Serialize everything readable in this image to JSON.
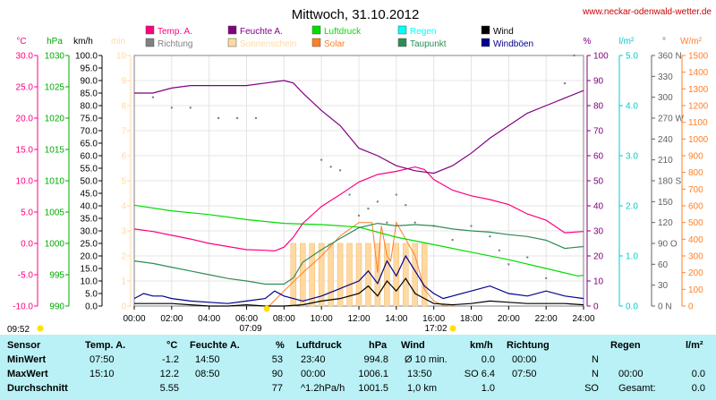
{
  "title": "Mittwoch, 31.10.2012",
  "site": "www.neckar-odenwald-wetter.de",
  "legend": [
    {
      "label": "Temp. A.",
      "color": "#ff007f"
    },
    {
      "label": "Feuchte A.",
      "color": "#800080"
    },
    {
      "label": "Luftdruck",
      "color": "#00dd00"
    },
    {
      "label": "Regen",
      "color": "#00ffff"
    },
    {
      "label": "Wind",
      "color": "#000000"
    },
    {
      "label": "Richtung",
      "color": "#808080"
    },
    {
      "label": "Sonnenschein",
      "color": "#ffd9a0"
    },
    {
      "label": "Solar",
      "color": "#ff7f27"
    },
    {
      "label": "Taupunkt",
      "color": "#2e8b57"
    },
    {
      "label": "Windböen",
      "color": "#00008b"
    }
  ],
  "axes": {
    "temp": {
      "unit": "°C",
      "ticks": [
        "30.0",
        "25.0",
        "20.0",
        "15.0",
        "10.0",
        "5.0",
        "0.0",
        "-5.0",
        "-10.0"
      ],
      "color": "#ff007f"
    },
    "pressure": {
      "unit": "hPa",
      "ticks": [
        "1030",
        "1025",
        "1020",
        "1015",
        "1010",
        "1005",
        "1000",
        "995",
        "990"
      ],
      "color": "#00aa00"
    },
    "wind": {
      "unit": "km/h",
      "ticks": [
        "100.0",
        "95.0",
        "90.0",
        "85.0",
        "80.0",
        "75.0",
        "70.0",
        "65.0",
        "60.0",
        "55.0",
        "50.0",
        "45.0",
        "40.0",
        "35.0",
        "30.0",
        "25.0",
        "20.0",
        "15.0",
        "10.0",
        "5.0",
        "0.0"
      ],
      "color": "#000000"
    },
    "sunshine": {
      "unit": "min",
      "ticks": [
        "10",
        "9",
        "8",
        "7",
        "6",
        "5",
        "4",
        "3",
        "2",
        "1",
        "0"
      ],
      "color": "#ffd9a0"
    },
    "humidity": {
      "unit": "%",
      "ticks": [
        "100",
        "90",
        "80",
        "70",
        "60",
        "50",
        "40",
        "30",
        "20",
        "10",
        "0"
      ],
      "color": "#800080"
    },
    "rain": {
      "unit": "l/m²",
      "ticks": [
        "5.0",
        "4.0",
        "3.0",
        "2.0",
        "1.0",
        "0.0"
      ],
      "color": "#00cccc"
    },
    "direction": {
      "unit": "°",
      "ticks": [
        "360 N",
        "330",
        "300",
        "270 W",
        "240",
        "210",
        "180 S",
        "150",
        "120",
        "90 O",
        "60",
        "30",
        "0 N"
      ],
      "color": "#606060"
    },
    "solar": {
      "unit": "W/m²",
      "ticks": [
        "1500",
        "1400",
        "1300",
        "1200",
        "1100",
        "1000",
        "900",
        "800",
        "700",
        "600",
        "500",
        "400",
        "300",
        "200",
        "100",
        "0"
      ],
      "color": "#ff7f27"
    },
    "time": [
      "00:00",
      "02:00",
      "04:00",
      "06:00",
      "08:00",
      "10:00",
      "12:00",
      "14:00",
      "16:00",
      "18:00",
      "20:00",
      "22:00",
      "24:00"
    ]
  },
  "sun_events": {
    "left": "09:52",
    "sunrise": "07:09",
    "sunset": "17:02"
  },
  "chart_data": {
    "type": "line",
    "title": "Mittwoch, 31.10.2012",
    "x_unit": "hours",
    "xlim": [
      0,
      24
    ],
    "series": [
      {
        "name": "Temp. A.",
        "unit": "°C",
        "color": "#ff007f",
        "x": [
          0,
          1,
          2,
          3,
          4,
          5,
          6,
          7,
          7.5,
          8,
          8.5,
          9,
          10,
          11,
          12,
          13,
          14,
          15,
          15.5,
          16,
          17,
          18,
          19,
          20,
          21,
          22,
          23,
          24
        ],
        "y": [
          2.3,
          1.9,
          1.3,
          0.7,
          0.0,
          -0.5,
          -1.0,
          -1.1,
          -1.2,
          -0.6,
          1.0,
          3.2,
          5.9,
          7.8,
          9.8,
          11.0,
          11.5,
          12.2,
          11.8,
          10.2,
          8.5,
          7.6,
          7.0,
          6.2,
          4.7,
          3.7,
          1.7,
          1.9
        ]
      },
      {
        "name": "Feuchte A.",
        "unit": "%",
        "color": "#800080",
        "x": [
          0,
          1,
          2,
          3,
          4,
          5,
          6,
          7,
          8,
          8.5,
          9,
          10,
          11,
          12,
          13,
          14,
          15,
          16,
          17,
          18,
          19,
          20,
          21,
          22,
          23,
          24
        ],
        "y": [
          85,
          85,
          87,
          88,
          88,
          88,
          88,
          89,
          90,
          89,
          85,
          78,
          72,
          63,
          60,
          56,
          54,
          53,
          56,
          61,
          67,
          72,
          77,
          80,
          83,
          86
        ]
      },
      {
        "name": "Luftdruck",
        "unit": "hPa",
        "color": "#00dd00",
        "x": [
          0,
          2,
          4,
          6,
          8,
          10,
          12,
          13,
          14,
          16,
          18,
          20,
          22,
          23.7,
          24
        ],
        "y": [
          1006.1,
          1005.2,
          1004.6,
          1003.8,
          1003.2,
          1003.0,
          1002.6,
          1001.8,
          1001.0,
          999.8,
          998.6,
          997.4,
          996.0,
          994.8,
          994.9
        ]
      },
      {
        "name": "Taupunkt",
        "unit": "°C",
        "color": "#2e8b57",
        "x": [
          0,
          1,
          2,
          3,
          4,
          5,
          6,
          7,
          8,
          8.5,
          9,
          10,
          11,
          12,
          13,
          14,
          15,
          16,
          17,
          18,
          19,
          20,
          21,
          22,
          23,
          24
        ],
        "y": [
          -2.8,
          -3.2,
          -3.8,
          -4.4,
          -5.0,
          -5.6,
          -6.0,
          -6.5,
          -6.5,
          -5.5,
          -3.0,
          -1.0,
          0.8,
          2.5,
          3.2,
          2.8,
          3.0,
          2.8,
          2.3,
          2.0,
          1.8,
          1.4,
          1.1,
          0.5,
          -0.8,
          -0.5
        ]
      },
      {
        "name": "Solar",
        "unit": "W/m²",
        "color": "#ff7f27",
        "x": [
          7.2,
          8,
          9,
          10,
          11,
          12,
          12.7,
          13,
          13.2,
          13.5,
          13.7,
          14,
          14.5,
          15,
          15.5,
          16,
          16.5,
          17
        ],
        "y": [
          0,
          90,
          200,
          300,
          420,
          500,
          500,
          200,
          480,
          300,
          270,
          500,
          400,
          300,
          100,
          30,
          5,
          0
        ]
      },
      {
        "name": "Sonnenschein",
        "unit": "min",
        "color": "#ffd9a0",
        "x": [
          8.5,
          9,
          9.5,
          10,
          10.5,
          11,
          11.5,
          12,
          12.5,
          13,
          13.5,
          14,
          14.5,
          15,
          15.5
        ],
        "y": [
          2.5,
          2.5,
          2.5,
          2.5,
          2.5,
          2.5,
          2.5,
          2.5,
          2.5,
          2.5,
          2.5,
          2.5,
          2.5,
          2.5,
          2.5
        ]
      },
      {
        "name": "Wind",
        "unit": "km/h",
        "color": "#000000",
        "x": [
          0,
          1,
          2,
          3,
          4,
          5,
          6,
          7,
          8,
          9,
          10,
          11,
          12,
          12.5,
          13,
          13.5,
          14,
          14.5,
          15,
          15.5,
          16,
          17,
          18,
          19,
          20,
          21,
          22,
          23,
          24
        ],
        "y": [
          1,
          1,
          1,
          0.5,
          0,
          0,
          0.5,
          0,
          0,
          0.5,
          2,
          3,
          5,
          8,
          4,
          10,
          6,
          11,
          5,
          3,
          1,
          0.5,
          1,
          2,
          1.5,
          1,
          1,
          1,
          0.5
        ]
      },
      {
        "name": "Windböen",
        "unit": "km/h",
        "color": "#00008b",
        "x": [
          0,
          0.5,
          1,
          1.5,
          2,
          3,
          4,
          5,
          6,
          7,
          7.5,
          8,
          9,
          10,
          11,
          12,
          12.5,
          13,
          13.5,
          14,
          14.5,
          15,
          15.5,
          16,
          16.5,
          17,
          18,
          19,
          20,
          21,
          22,
          23,
          24
        ],
        "y": [
          3,
          5,
          4,
          4,
          3,
          2,
          1.5,
          1,
          2,
          3,
          6,
          4,
          2,
          4,
          7,
          10,
          14,
          9,
          18,
          12,
          20,
          14,
          8,
          5,
          3,
          4,
          6,
          8,
          5,
          4,
          6,
          4,
          3
        ]
      },
      {
        "name": "Richtung",
        "unit": "°",
        "color": "#808080",
        "x": [
          1,
          2,
          3,
          4.5,
          5.5,
          6.5,
          10,
          10.5,
          11,
          11.5,
          12,
          12.5,
          13,
          13.5,
          14,
          14.5,
          15,
          16,
          17,
          18,
          19,
          19.5,
          20,
          21,
          22,
          23,
          23.5
        ],
        "y": [
          300,
          285,
          285,
          270,
          270,
          270,
          210,
          200,
          195,
          160,
          130,
          140,
          150,
          120,
          160,
          145,
          120,
          115,
          95,
          115,
          100,
          80,
          60,
          70,
          40,
          320,
          360
        ]
      }
    ]
  },
  "table": {
    "header": {
      "sensor": "Sensor",
      "temp": "Temp. A.",
      "temp_unit": "°C",
      "hum": "Feuchte A.",
      "hum_unit": "%",
      "press": "Luftdruck",
      "press_unit": "hPa",
      "wind": "Wind",
      "wind_unit": "km/h",
      "dir": "Richtung",
      "rain": "Regen",
      "rain_unit": "l/m²"
    },
    "rows": [
      {
        "label": "MinWert",
        "temp_time": "07:50",
        "temp_val": "-1.2",
        "hum_time": "14:50",
        "hum_val": "53",
        "press_time": "23:40",
        "press_val": "994.8",
        "wind_time": "Ø 10 min.",
        "wind_val": "0.0",
        "dir_time": "00:00",
        "dir_val": "N",
        "rain_time": "",
        "rain_val": ""
      },
      {
        "label": "MaxWert",
        "temp_time": "15:10",
        "temp_val": "12.2",
        "hum_time": "08:50",
        "hum_val": "90",
        "press_time": "00:00",
        "press_val": "1006.1",
        "wind_time": "13:50",
        "wind_val": "SO 6.4",
        "dir_time": "07:50",
        "dir_val": "N",
        "rain_time": "00:00",
        "rain_val": "0.0"
      },
      {
        "label": "Durchschnitt",
        "temp_time": "",
        "temp_val": "5.55",
        "hum_time": "",
        "hum_val": "77",
        "press_time": "^1.2hPa/h",
        "press_val": "1001.5",
        "wind_time": "1,0 km",
        "wind_val": "1.0",
        "dir_time": "",
        "dir_val": "SO",
        "rain_time": "Gesamt:",
        "rain_val": "0.0"
      }
    ]
  }
}
